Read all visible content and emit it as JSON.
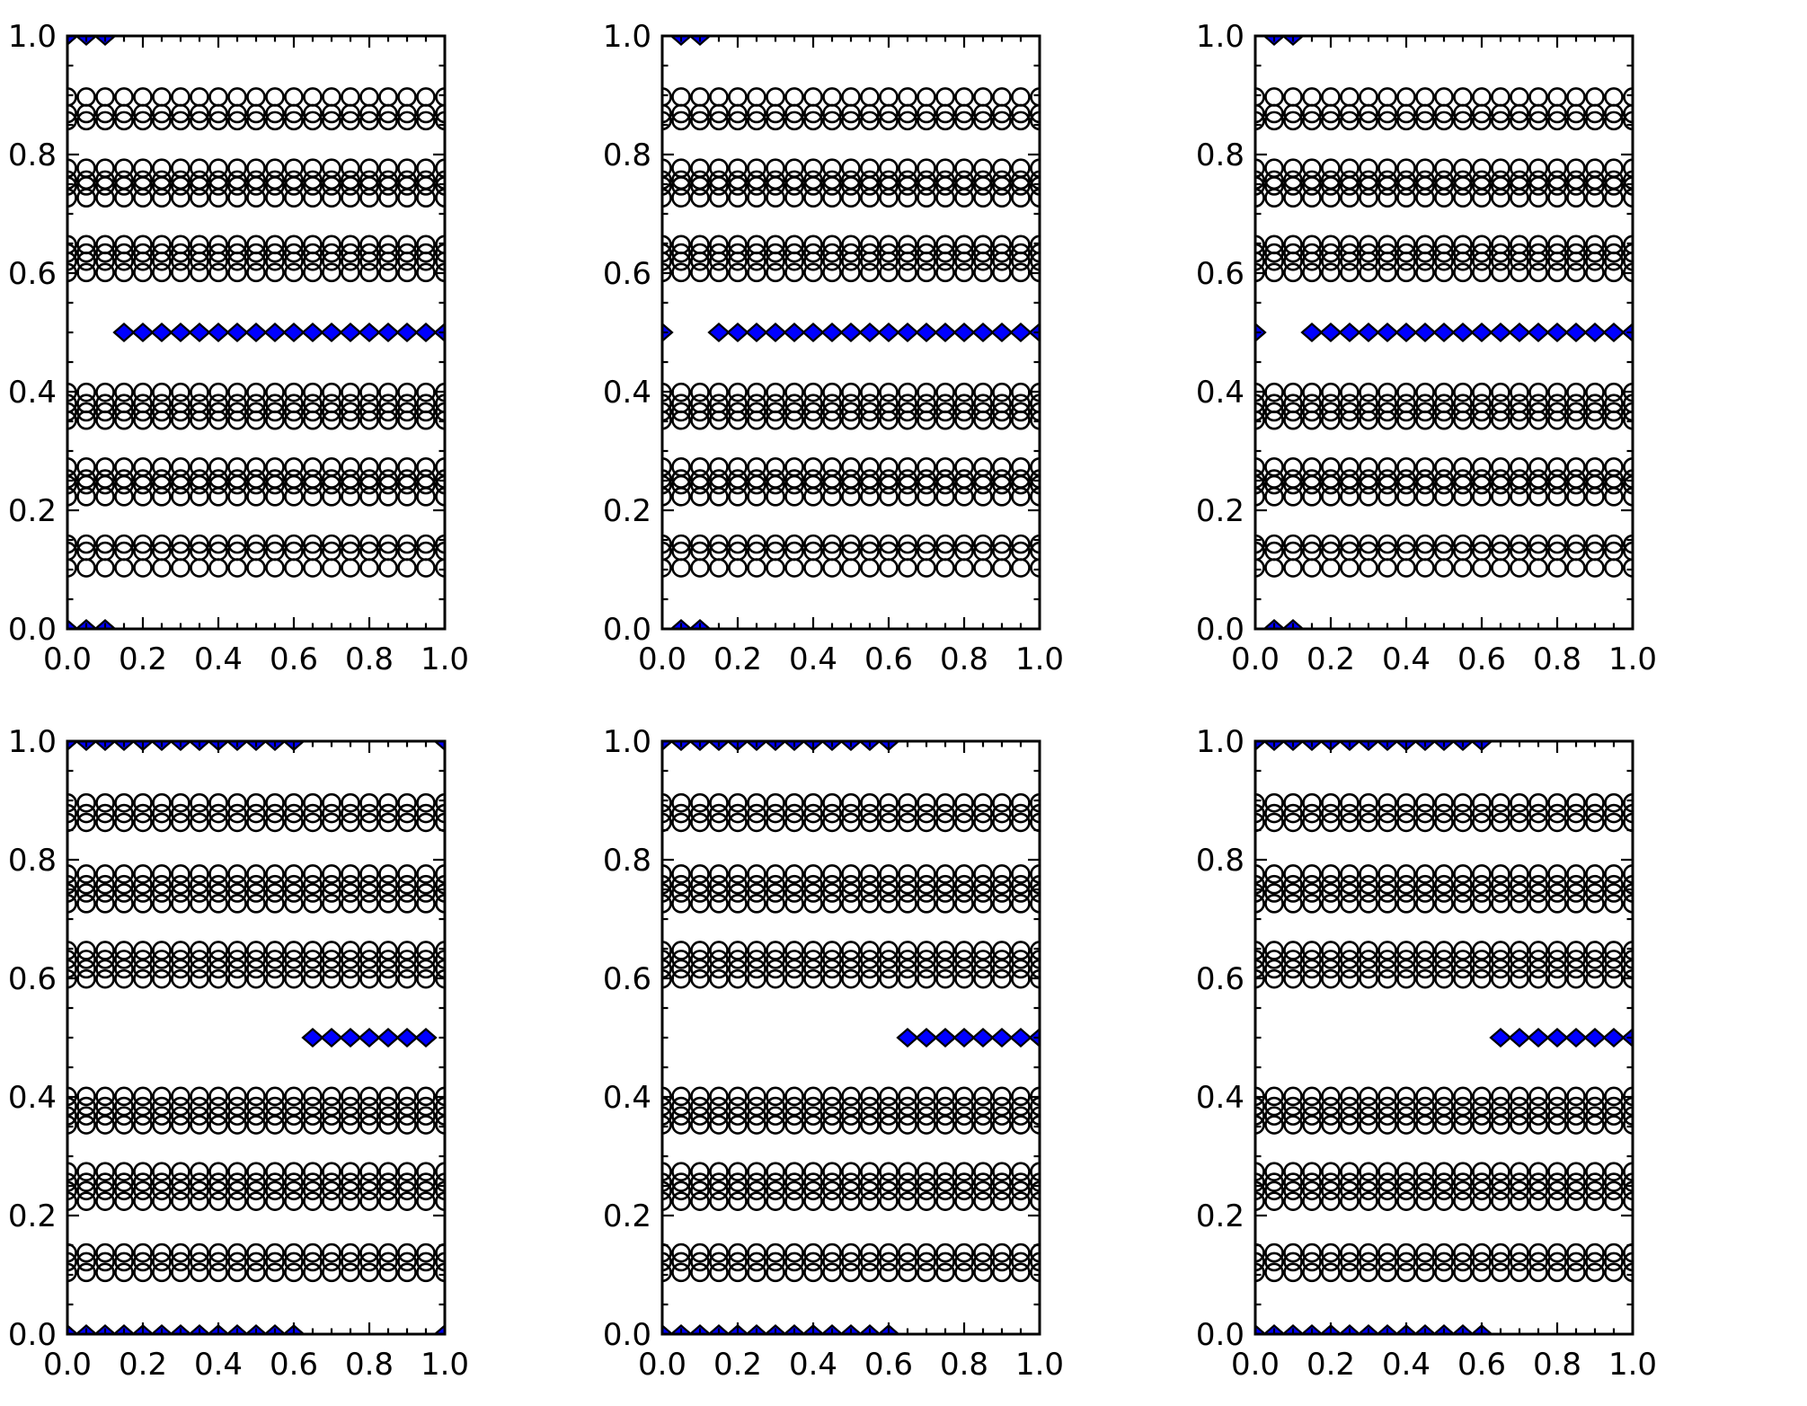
{
  "figure": {
    "background": "#ffffff",
    "title": "",
    "grid_rows": 2,
    "grid_cols": 3
  },
  "style": {
    "circle_edge_color": "#000000",
    "diamond_fill_color": "#0000ff",
    "diamond_edge_color": "#000000",
    "spine_color": "#000000",
    "tick_label_color": "#000000"
  },
  "chart_data": {
    "type": "scatter",
    "layout": "2x3 subplot grid, no titles, no axis labels, no legend, no gridlines",
    "axes_shared": {
      "xlim": [
        0.0,
        1.0
      ],
      "ylim": [
        0.0,
        1.0
      ],
      "x_major_ticks": [
        0.0,
        0.2,
        0.4,
        0.6,
        0.8,
        1.0
      ],
      "x_tick_labels": [
        "0.0",
        "0.2",
        "0.4",
        "0.6",
        "0.8",
        "1.0"
      ],
      "y_major_ticks": [
        0.0,
        0.2,
        0.4,
        0.6,
        0.8,
        1.0
      ],
      "y_tick_labels": [
        "0.0",
        "0.2",
        "0.4",
        "0.6",
        "0.8",
        "1.0"
      ],
      "minor_tick_step": 0.05,
      "tick_direction": "in",
      "ticks_on_all_sides": true,
      "grid": false,
      "legend": false
    },
    "series_legend": [
      {
        "name": "open-circles",
        "marker": "circle",
        "fill": "none",
        "edge": "#000000"
      },
      {
        "name": "blue-diamonds",
        "marker": "diamond",
        "fill": "#0000ff",
        "edge": "#000000"
      }
    ],
    "circle_x_grid": {
      "min": 0.0,
      "max": 1.0,
      "step": 0.05,
      "count": 21
    },
    "subplots": [
      {
        "id": "top-left",
        "row": 0,
        "col": 0,
        "circle_row_y": [
          0.897,
          0.869,
          0.857,
          0.777,
          0.757,
          0.747,
          0.727,
          0.648,
          0.634,
          0.62,
          0.601,
          0.399,
          0.38,
          0.366,
          0.352,
          0.273,
          0.253,
          0.243,
          0.223,
          0.143,
          0.131,
          0.103
        ],
        "diamond_rows": [
          {
            "y": 1.0,
            "x": [
              0.0,
              0.05,
              0.1
            ]
          },
          {
            "y": 0.5,
            "x": [
              0.15,
              0.2,
              0.25,
              0.3,
              0.35,
              0.4,
              0.45,
              0.5,
              0.55,
              0.6,
              0.65,
              0.7,
              0.75,
              0.8,
              0.85,
              0.9,
              0.95,
              1.0
            ]
          },
          {
            "y": 0.0,
            "x": [
              0.0,
              0.05,
              0.1
            ]
          }
        ]
      },
      {
        "id": "top-middle",
        "row": 0,
        "col": 1,
        "circle_row_y": [
          0.897,
          0.869,
          0.857,
          0.777,
          0.757,
          0.747,
          0.727,
          0.648,
          0.634,
          0.62,
          0.601,
          0.399,
          0.38,
          0.366,
          0.352,
          0.273,
          0.253,
          0.243,
          0.223,
          0.143,
          0.131,
          0.103
        ],
        "diamond_rows": [
          {
            "y": 1.0,
            "x": [
              0.05,
              0.1
            ]
          },
          {
            "y": 0.5,
            "x": [
              0.0,
              0.15,
              0.2,
              0.25,
              0.3,
              0.35,
              0.4,
              0.45,
              0.5,
              0.55,
              0.6,
              0.65,
              0.7,
              0.75,
              0.8,
              0.85,
              0.9,
              0.95,
              1.0
            ]
          },
          {
            "y": 0.0,
            "x": [
              0.05,
              0.1
            ]
          }
        ]
      },
      {
        "id": "top-right",
        "row": 0,
        "col": 2,
        "circle_row_y": [
          0.897,
          0.869,
          0.857,
          0.777,
          0.757,
          0.747,
          0.727,
          0.648,
          0.634,
          0.62,
          0.601,
          0.399,
          0.38,
          0.366,
          0.352,
          0.273,
          0.253,
          0.243,
          0.223,
          0.143,
          0.131,
          0.103
        ],
        "diamond_rows": [
          {
            "y": 1.0,
            "x": [
              0.05,
              0.1
            ]
          },
          {
            "y": 0.5,
            "x": [
              0.0,
              0.15,
              0.2,
              0.25,
              0.3,
              0.35,
              0.4,
              0.45,
              0.5,
              0.55,
              0.6,
              0.65,
              0.7,
              0.75,
              0.8,
              0.85,
              0.9,
              0.95,
              1.0
            ]
          },
          {
            "y": 0.0,
            "x": [
              0.05,
              0.1
            ]
          }
        ]
      },
      {
        "id": "bottom-left",
        "row": 1,
        "col": 0,
        "circle_row_y": [
          0.896,
          0.878,
          0.863,
          0.776,
          0.758,
          0.744,
          0.726,
          0.647,
          0.632,
          0.616,
          0.599,
          0.401,
          0.384,
          0.368,
          0.353,
          0.274,
          0.256,
          0.242,
          0.224,
          0.137,
          0.122,
          0.104
        ],
        "diamond_rows": [
          {
            "y": 1.0,
            "x": [
              0.0,
              0.05,
              0.1,
              0.15,
              0.2,
              0.25,
              0.3,
              0.35,
              0.4,
              0.45,
              0.5,
              0.55,
              0.6,
              1.0
            ]
          },
          {
            "y": 0.5,
            "x": [
              0.65,
              0.7,
              0.75,
              0.8,
              0.85,
              0.9,
              0.95
            ]
          },
          {
            "y": 0.0,
            "x": [
              0.0,
              0.05,
              0.1,
              0.15,
              0.2,
              0.25,
              0.3,
              0.35,
              0.4,
              0.45,
              0.5,
              0.55,
              0.6,
              1.0
            ]
          }
        ]
      },
      {
        "id": "bottom-middle",
        "row": 1,
        "col": 1,
        "circle_row_y": [
          0.896,
          0.878,
          0.863,
          0.776,
          0.758,
          0.744,
          0.726,
          0.647,
          0.632,
          0.616,
          0.599,
          0.401,
          0.384,
          0.368,
          0.353,
          0.274,
          0.256,
          0.242,
          0.224,
          0.137,
          0.122,
          0.104
        ],
        "diamond_rows": [
          {
            "y": 1.0,
            "x": [
              0.0,
              0.05,
              0.1,
              0.15,
              0.2,
              0.25,
              0.3,
              0.35,
              0.4,
              0.45,
              0.5,
              0.55,
              0.6
            ]
          },
          {
            "y": 0.5,
            "x": [
              0.65,
              0.7,
              0.75,
              0.8,
              0.85,
              0.9,
              0.95,
              1.0
            ]
          },
          {
            "y": 0.0,
            "x": [
              0.0,
              0.05,
              0.1,
              0.15,
              0.2,
              0.25,
              0.3,
              0.35,
              0.4,
              0.45,
              0.5,
              0.55,
              0.6
            ]
          }
        ]
      },
      {
        "id": "bottom-right",
        "row": 1,
        "col": 2,
        "circle_row_y": [
          0.896,
          0.878,
          0.863,
          0.776,
          0.758,
          0.744,
          0.726,
          0.647,
          0.632,
          0.616,
          0.599,
          0.401,
          0.384,
          0.368,
          0.353,
          0.274,
          0.256,
          0.242,
          0.224,
          0.137,
          0.122,
          0.104
        ],
        "diamond_rows": [
          {
            "y": 1.0,
            "x": [
              0.0,
              0.05,
              0.1,
              0.15,
              0.2,
              0.25,
              0.3,
              0.35,
              0.4,
              0.45,
              0.5,
              0.55,
              0.6
            ]
          },
          {
            "y": 0.5,
            "x": [
              0.65,
              0.7,
              0.75,
              0.8,
              0.85,
              0.9,
              0.95,
              1.0
            ]
          },
          {
            "y": 0.0,
            "x": [
              0.0,
              0.05,
              0.1,
              0.15,
              0.2,
              0.25,
              0.3,
              0.35,
              0.4,
              0.45,
              0.5,
              0.55,
              0.6
            ]
          }
        ]
      }
    ]
  }
}
